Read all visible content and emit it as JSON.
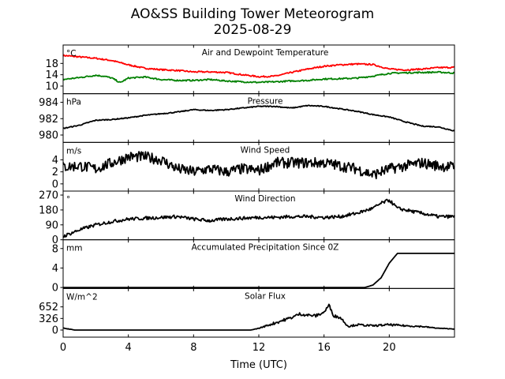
{
  "chart_data": {
    "type": "line",
    "title": "AO&SS Building Tower Meteorogram",
    "subtitle": "2025-08-29",
    "xlabel": "Time (UTC)",
    "xlim": [
      0,
      24
    ],
    "xticks": [
      0,
      4,
      8,
      12,
      16,
      20
    ],
    "grid": false,
    "panels": [
      {
        "title": "Air and Dewpoint Temperature",
        "unit": "°C",
        "ylim": [
          7.3,
          24.5
        ],
        "yticks": [
          10,
          14,
          18
        ],
        "series": [
          {
            "name": "Air Temperature",
            "color": "#ff0000",
            "x": [
              0,
              1,
              2,
              3,
              4,
              5,
              6,
              7,
              8,
              9,
              10,
              11,
              12,
              13,
              14,
              15,
              16,
              17,
              18,
              19,
              20,
              21,
              22,
              23,
              24
            ],
            "y": [
              20.8,
              20.3,
              19.8,
              19.0,
              17.5,
              16.3,
              15.8,
              15.5,
              15.0,
              15.0,
              14.8,
              14.0,
              13.3,
              13.5,
              14.8,
              16.0,
              17.0,
              17.5,
              17.8,
              17.6,
              16.0,
              15.7,
              16.0,
              16.5,
              16.6
            ]
          },
          {
            "name": "Dewpoint",
            "color": "#008000",
            "x": [
              0,
              1,
              2,
              2.5,
              3,
              3.5,
              4,
              5,
              6,
              7,
              8,
              9,
              10,
              11,
              12,
              13,
              14,
              15,
              16,
              17,
              18,
              19,
              20,
              21,
              22,
              23,
              24
            ],
            "y": [
              12.3,
              13.0,
              13.8,
              13.5,
              12.8,
              11.2,
              12.8,
              13.2,
              12.3,
              12.0,
              12.0,
              12.3,
              11.8,
              11.5,
              11.3,
              11.5,
              11.8,
              12.0,
              12.5,
              12.6,
              12.8,
              13.5,
              14.5,
              14.7,
              14.8,
              14.9,
              14.6
            ]
          }
        ]
      },
      {
        "title": "Pressure",
        "unit": "hPa",
        "ylim": [
          979.1,
          985.05
        ],
        "yticks": [
          980,
          982,
          984
        ],
        "series": [
          {
            "name": "Pressure",
            "color": "#000000",
            "x": [
              0,
              1,
              2,
              3,
              4,
              5,
              6,
              7,
              8,
              9,
              10,
              11,
              12,
              13,
              14,
              15,
              16,
              17,
              18,
              19,
              20,
              21,
              22,
              23,
              24
            ],
            "y": [
              980.8,
              981.2,
              981.8,
              981.9,
              982.1,
              982.4,
              982.6,
              982.8,
              983.1,
              983.0,
              983.1,
              983.3,
              983.5,
              983.5,
              983.3,
              983.6,
              983.5,
              983.2,
              982.9,
              982.5,
              982.2,
              981.6,
              981.1,
              981.0,
              980.5
            ]
          }
        ]
      },
      {
        "title": "Wind Speed",
        "unit": "m/s",
        "ylim": [
          -1.2,
          6.9
        ],
        "yticks": [
          0,
          2,
          4
        ],
        "series": [
          {
            "name": "Wind Speed",
            "color": "#000000",
            "x": [
              0,
              1,
              2,
              3,
              4,
              5,
              6,
              7,
              8,
              9,
              10,
              11,
              12,
              13,
              14,
              15,
              16,
              17,
              18,
              19,
              20,
              21,
              22,
              23,
              24
            ],
            "y": [
              2.8,
              3.0,
              2.5,
              3.5,
              4.5,
              4.5,
              4.0,
              2.5,
              2.0,
              2.5,
              2.0,
              2.5,
              2.2,
              3.5,
              3.5,
              3.5,
              3.5,
              3.0,
              2.5,
              1.5,
              2.5,
              3.0,
              3.5,
              3.0,
              2.8
            ]
          }
        ]
      },
      {
        "title": "Wind Direction",
        "unit": "°",
        "ylim": [
          0,
          294
        ],
        "yticks": [
          0,
          90,
          180,
          270
        ],
        "series": [
          {
            "name": "Wind Direction",
            "color": "#000000",
            "x": [
              0,
              1,
              2,
              3,
              4,
              5,
              6,
              7,
              8,
              9,
              10,
              11,
              12,
              13,
              14,
              15,
              16,
              17,
              18,
              19,
              19.5,
              20,
              20.5,
              21,
              22,
              23,
              24
            ],
            "y": [
              20,
              60,
              90,
              110,
              125,
              130,
              135,
              140,
              125,
              115,
              125,
              130,
              135,
              135,
              140,
              140,
              135,
              140,
              160,
              190,
              220,
              240,
              190,
              180,
              160,
              140,
              140
            ]
          }
        ]
      },
      {
        "title": "Accumulated Precipitation Since 0Z",
        "unit": "mm",
        "ylim": [
          -0.2,
          9.8
        ],
        "yticks": [
          0,
          4,
          8
        ],
        "series": [
          {
            "name": "Precipitation",
            "color": "#000000",
            "x": [
              0,
              18.5,
              19,
              19.5,
              20,
              20.5,
              24
            ],
            "y": [
              0,
              0,
              0.5,
              2,
              5,
              7,
              7
            ]
          }
        ]
      },
      {
        "title": "Solar Flux",
        "unit": "W/m^2",
        "ylim": [
          -200,
          1170
        ],
        "yticks": [
          0,
          326,
          652
        ],
        "series": [
          {
            "name": "Solar Flux",
            "color": "#000000",
            "x": [
              0,
              0.7,
              11.5,
              12,
              13,
              14,
              14.5,
              15,
              15.5,
              16,
              16.3,
              16.6,
              17,
              17.5,
              18,
              19,
              20,
              21,
              22,
              23,
              24
            ],
            "y": [
              60,
              0,
              0,
              50,
              200,
              350,
              450,
              420,
              400,
              500,
              700,
              400,
              350,
              100,
              150,
              120,
              150,
              120,
              100,
              50,
              30
            ]
          }
        ]
      }
    ]
  }
}
